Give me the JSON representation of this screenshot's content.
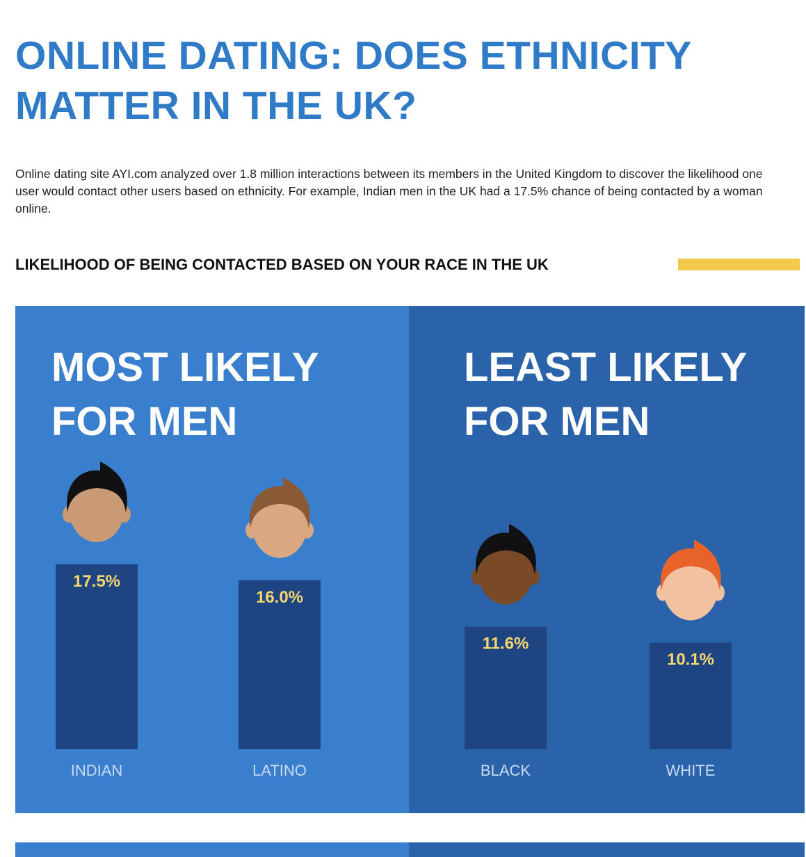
{
  "header": {
    "title": "ONLINE DATING: DOES ETHNICITY MATTER IN THE UK?",
    "intro": "Online dating site AYI.com analyzed over 1.8 million interactions between its members in the United Kingdom to discover the likelihood one user would contact other users based on ethnicity. For example, Indian men in the UK had a 17.5% chance of being contacted by a woman online.",
    "section_title": "LIKELIHOOD OF BEING CONTACTED BASED ON YOUR RACE IN THE UK"
  },
  "chart_data": [
    {
      "type": "bar",
      "title": "MOST LIKELY FOR MEN",
      "categories": [
        "INDIAN",
        "LATINO"
      ],
      "values": [
        17.5,
        16.0
      ],
      "value_labels": [
        "17.5%",
        "16.0%"
      ],
      "color": "#1e4482",
      "background": "#3a7fcd"
    },
    {
      "type": "bar",
      "title": "LEAST LIKELY FOR MEN",
      "categories": [
        "BLACK",
        "WHITE"
      ],
      "values": [
        11.6,
        10.1
      ],
      "value_labels": [
        "11.6%",
        "10.1%"
      ],
      "color": "#1e4482",
      "background": "#2a63aa"
    }
  ]
}
